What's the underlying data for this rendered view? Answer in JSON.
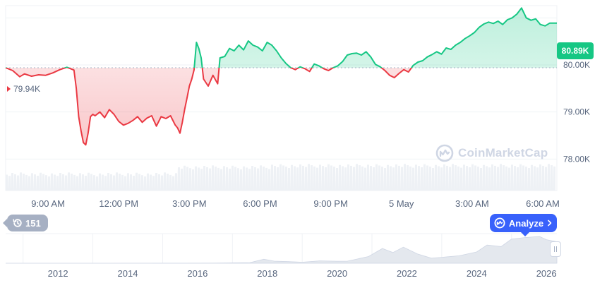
{
  "chart_data": [
    {
      "type": "area",
      "title": "",
      "open_price_label": "79.94K",
      "current_price_label": "80.89K",
      "y_ticks": [
        {
          "label": "80.00K",
          "value": 80000
        },
        {
          "label": "79.00K",
          "value": 79000
        },
        {
          "label": "78.00K",
          "value": 78000
        }
      ],
      "ylim": [
        77900,
        81200
      ],
      "baseline": 79940,
      "x_tick_labels": [
        "9:00 AM",
        "12:00 PM",
        "3:00 PM",
        "6:00 PM",
        "9:00 PM",
        "5 May",
        "3:00 AM",
        "6:00 AM"
      ],
      "x_tick_hours": [
        9,
        12,
        15,
        18,
        21,
        24,
        27,
        30
      ],
      "xlim_hours": [
        7.2,
        30.6
      ],
      "series": [
        {
          "x": [
            7.2,
            7.5,
            7.8,
            8.0,
            8.3,
            8.6,
            8.9,
            9.2,
            9.5,
            9.8,
            10.1,
            10.2,
            10.3,
            10.4,
            10.5,
            10.6,
            10.7,
            10.8,
            10.9,
            11.0,
            11.2,
            11.4,
            11.6,
            11.8,
            12.0,
            12.2,
            12.4,
            12.6,
            12.8,
            13.0,
            13.2,
            13.4,
            13.6,
            13.8,
            14.0,
            14.2,
            14.4,
            14.5,
            14.6,
            14.7,
            14.8,
            14.9,
            15.0,
            15.1,
            15.2,
            15.3,
            15.4,
            15.5,
            15.6,
            15.8,
            16.0,
            16.2,
            16.3,
            16.5,
            16.7,
            16.9,
            17.1,
            17.3,
            17.5,
            17.7,
            17.9,
            18.1,
            18.3,
            18.5,
            18.7,
            18.9,
            19.1,
            19.3,
            19.5,
            19.7,
            19.9,
            20.1,
            20.3,
            20.5,
            20.7,
            20.9,
            21.1,
            21.3,
            21.5,
            21.7,
            21.9,
            22.1,
            22.3,
            22.5,
            22.7,
            22.9,
            23.1,
            23.3,
            23.5,
            23.7,
            23.9,
            24.1,
            24.3,
            24.5,
            24.7,
            24.9,
            25.1,
            25.3,
            25.5,
            25.7,
            25.9,
            26.1,
            26.3,
            26.5,
            26.7,
            26.9,
            27.1,
            27.3,
            27.5,
            27.7,
            27.9,
            28.1,
            28.3,
            28.5,
            28.7,
            28.9,
            29.1,
            29.3,
            29.5,
            29.7,
            29.9,
            30.1,
            30.3,
            30.6
          ],
          "y": [
            79940,
            79880,
            79750,
            79810,
            79760,
            79790,
            79780,
            79830,
            79900,
            79950,
            79890,
            79500,
            78900,
            78600,
            78350,
            78300,
            78550,
            78900,
            78950,
            78920,
            79000,
            78880,
            79050,
            78950,
            78800,
            78720,
            78760,
            78820,
            78900,
            78780,
            78870,
            78920,
            78700,
            78900,
            78860,
            78920,
            78720,
            78660,
            78550,
            78780,
            79060,
            79300,
            79550,
            79700,
            79900,
            80480,
            80350,
            80150,
            79700,
            79550,
            79780,
            79600,
            80150,
            80180,
            80350,
            80300,
            80420,
            80320,
            80510,
            80420,
            80380,
            80300,
            80480,
            80420,
            80300,
            80150,
            80030,
            79940,
            79900,
            79960,
            79920,
            79860,
            80020,
            79980,
            79920,
            79880,
            79940,
            79980,
            80070,
            80210,
            80240,
            80250,
            80210,
            80280,
            80170,
            80010,
            79960,
            79880,
            79780,
            79730,
            79820,
            79900,
            79850,
            79990,
            80060,
            80090,
            80170,
            80220,
            80280,
            80230,
            80360,
            80330,
            80420,
            80480,
            80560,
            80620,
            80690,
            80800,
            80870,
            80910,
            80880,
            80930,
            80860,
            80960,
            81000,
            81080,
            81210,
            81000,
            80950,
            80980,
            80860,
            80830,
            80890,
            80890
          ]
        }
      ]
    },
    {
      "type": "area",
      "title": "",
      "x_tick_labels": [
        "2012",
        "2014",
        "2016",
        "2018",
        "2020",
        "2022",
        "2024",
        "2026"
      ],
      "x_tick_years": [
        2012,
        2014,
        2016,
        2018,
        2020,
        2022,
        2024,
        2026
      ],
      "xlim_years": [
        2010.5,
        2026.3
      ],
      "series": [
        {
          "x": [
            2010.5,
            2013.0,
            2015.0,
            2016.5,
            2017.5,
            2017.9,
            2018.2,
            2018.6,
            2019.0,
            2019.5,
            2020.0,
            2020.3,
            2020.9,
            2021.3,
            2021.6,
            2021.9,
            2022.3,
            2022.7,
            2023.0,
            2023.5,
            2024.0,
            2024.3,
            2024.7,
            2025.0,
            2025.4,
            2025.8,
            2026.0,
            2026.3
          ],
          "y": [
            0,
            0.1,
            0.3,
            0.6,
            2.5,
            15,
            8,
            6,
            4,
            9,
            7.5,
            8,
            25,
            55,
            40,
            60,
            35,
            19,
            22,
            28,
            42,
            68,
            62,
            90,
            96,
            100,
            88,
            80
          ]
        }
      ]
    }
  ],
  "watermark": "CoinMarketCap",
  "history_badge": {
    "count": "151",
    "icon": "history-icon"
  },
  "analyze_button": {
    "label": "Analyze",
    "icon": "cmc-logo-icon",
    "chevron": "chevron-right-icon"
  },
  "colors": {
    "up": "#16c784",
    "down": "#ea3943",
    "accent": "#3861fb",
    "grid": "#eff2f5",
    "label": "#58667e"
  }
}
